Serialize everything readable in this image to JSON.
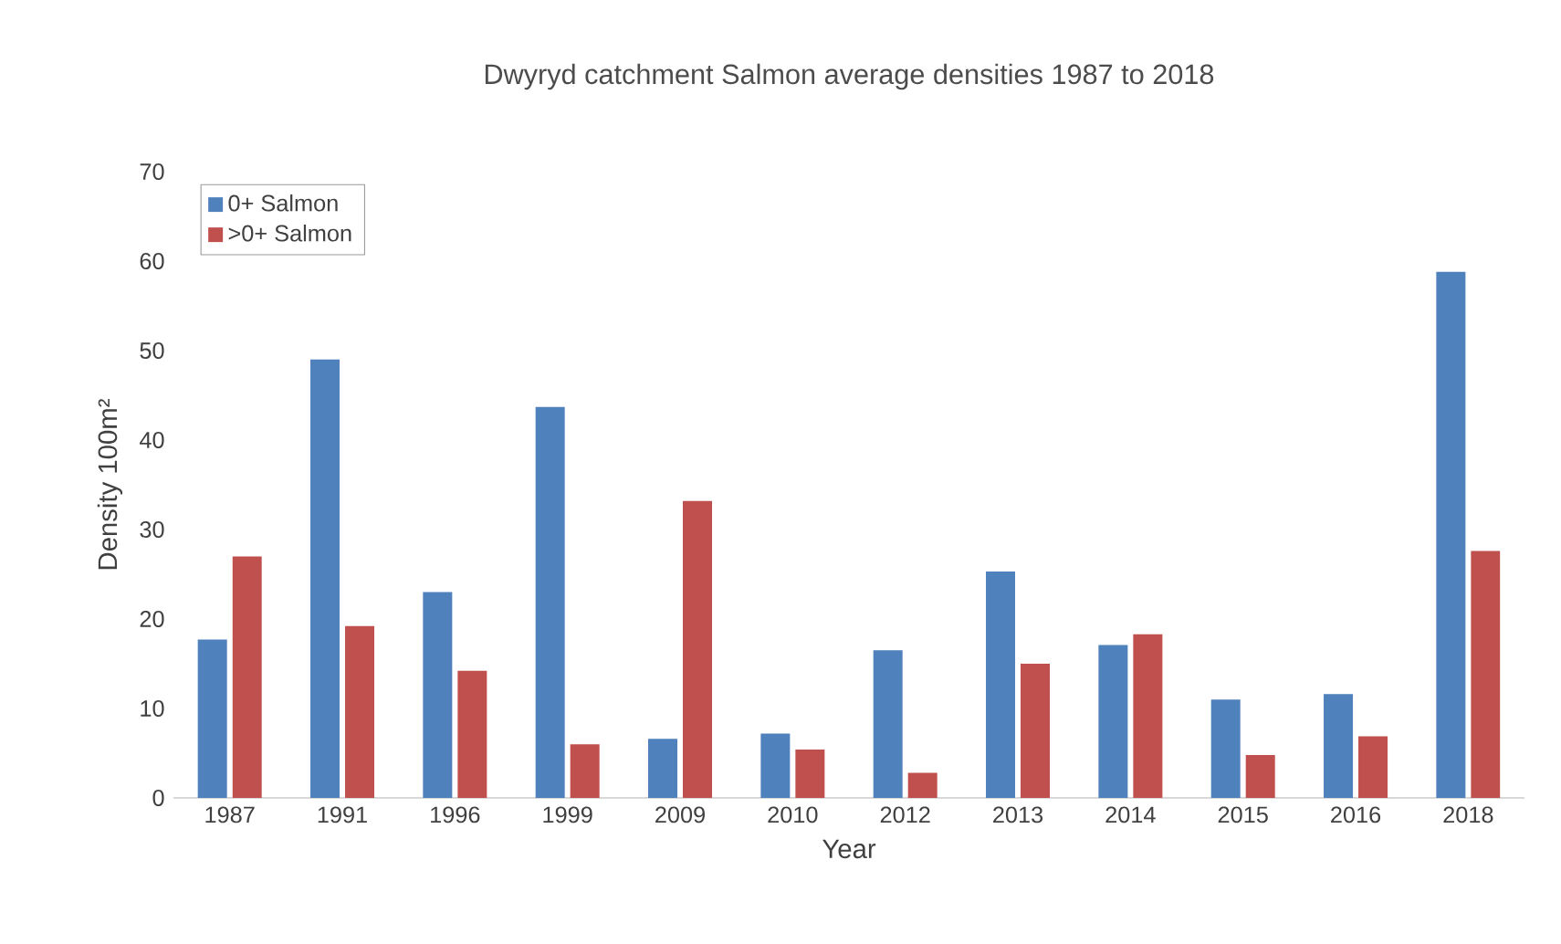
{
  "chart_data": {
    "type": "bar",
    "title": "Dwyryd catchment Salmon average densities 1987 to 2018",
    "xlabel": "Year",
    "ylabel": "Density 100m²",
    "categories": [
      "1987",
      "1991",
      "1996",
      "1999",
      "2009",
      "2010",
      "2012",
      "2013",
      "2014",
      "2015",
      "2016",
      "2018"
    ],
    "series": [
      {
        "name": "0+ Salmon",
        "color": "#4f81bd",
        "values": [
          17.7,
          49,
          23,
          43.7,
          6.6,
          7.2,
          16.5,
          25.3,
          17.1,
          11,
          11.6,
          58.8
        ]
      },
      {
        "name": ">0+ Salmon",
        "color": "#c0504d",
        "values": [
          27,
          19.2,
          14.2,
          6,
          33.2,
          5.4,
          2.8,
          15,
          18.3,
          4.8,
          6.9,
          27.6
        ]
      }
    ],
    "ylim": [
      0,
      70
    ],
    "yticks": [
      0,
      10,
      20,
      30,
      40,
      50,
      60,
      70
    ],
    "grid": false,
    "legend": "top left"
  }
}
